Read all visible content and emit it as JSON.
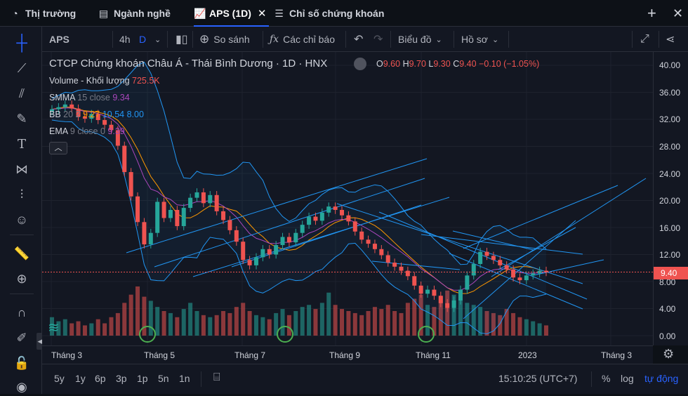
{
  "tabs": [
    {
      "label": "Thị trường",
      "icon": "pie-chart-icon"
    },
    {
      "label": "Ngành nghề",
      "icon": "list-icon"
    },
    {
      "label": "APS (1D)",
      "icon": "chart-icon"
    },
    {
      "label": "Chỉ số chứng khoán",
      "icon": "menu-icon"
    }
  ],
  "toolbar": {
    "symbol": "APS",
    "interval": "4h",
    "interval_active": "D",
    "compare": "So sánh",
    "indicators": "Các chỉ báo",
    "chart_type": "Biểu đồ",
    "profile": "Hồ sơ"
  },
  "legend": {
    "title": "CTCP Chứng khoán Châu Á - Thái Bình Dương · 1D · HNX",
    "o_label": "O",
    "o": "9.60",
    "h_label": "H",
    "h": "9.70",
    "l_label": "L",
    "l": "9.30",
    "c_label": "C",
    "c": "9.40",
    "change": "−0.10 (−1.05%)",
    "volume_label": "Volume - Khối lượng",
    "volume": "725.5K",
    "smma_label": "SMMA",
    "smma_params": "15 close",
    "smma": "9.34",
    "bb_label": "BB",
    "bb_params": "20 2",
    "bb1": "9.27",
    "bb2": "10.54",
    "bb3": "8.00",
    "ema_label": "EMA",
    "ema_params": "9 close 0",
    "ema": "9.39"
  },
  "price_tag": "9.40",
  "y_ticks": [
    "40.00",
    "36.00",
    "32.00",
    "28.00",
    "24.00",
    "20.00",
    "16.00",
    "12.00",
    "8.00",
    "4.00",
    "0.00"
  ],
  "x_ticks": [
    "Tháng 3",
    "Tháng 5",
    "Tháng 7",
    "Tháng 9",
    "Tháng 11",
    "2023",
    "Tháng 3"
  ],
  "ranges": [
    "5y",
    "1y",
    "6p",
    "3p",
    "1p",
    "5n",
    "1n"
  ],
  "time": "15:10:25 (UTC+7)",
  "scale_opts": {
    "percent": "%",
    "log": "log",
    "auto": "tự động"
  },
  "colors": {
    "up": "#26a69a",
    "down": "#ef5350",
    "bb": "#2196f3",
    "ema": "#ab47bc",
    "smma": "#ff9800",
    "accent": "#2962ff"
  },
  "chart_data": {
    "type": "candlestick",
    "title": "CTCP Chứng khoán Châu Á - Thái Bình Dương",
    "ylim": [
      0,
      40
    ],
    "y_ticks": [
      0,
      4,
      8,
      12,
      16,
      20,
      24,
      28,
      32,
      36,
      40
    ],
    "close": [
      33.5,
      33.8,
      34.2,
      33.6,
      32.4,
      32.1,
      32.8,
      31.9,
      31.2,
      30.4,
      28.1,
      24.2,
      20.6,
      16.8,
      13.5,
      15.2,
      19.8,
      17.4,
      18.6,
      16.2,
      18.9,
      20.4,
      21.2,
      19.6,
      20.8,
      18.4,
      17.1,
      15.6,
      13.9,
      11.2,
      10.4,
      11.6,
      12.8,
      12.0,
      13.4,
      14.6,
      13.8,
      15.2,
      16.4,
      17.6,
      17.0,
      18.2,
      19.1,
      18.6,
      17.8,
      16.9,
      15.4,
      14.2,
      13.6,
      12.8,
      11.9,
      10.8,
      10.2,
      9.6,
      8.8,
      7.4,
      6.2,
      6.8,
      5.9,
      4.8,
      4.1,
      5.2,
      6.8,
      8.9,
      10.6,
      12.4,
      11.8,
      11.2,
      10.4,
      9.8,
      8.6,
      8.2,
      8.9,
      9.2,
      9.6,
      9.4
    ],
    "volume": [
      0.9,
      0.7,
      0.8,
      0.6,
      0.7,
      0.5,
      0.6,
      0.8,
      0.6,
      0.9,
      1.1,
      1.6,
      2.0,
      2.4,
      1.9,
      1.7,
      1.4,
      1.2,
      1.1,
      0.9,
      1.3,
      1.6,
      1.2,
      1.0,
      0.9,
      1.0,
      1.2,
      1.1,
      1.4,
      1.6,
      1.2,
      1.0,
      0.9,
      0.8,
      1.1,
      1.3,
      1.0,
      1.2,
      1.4,
      1.5,
      1.3,
      1.6,
      2.1,
      1.5,
      1.3,
      1.2,
      1.1,
      1.0,
      1.2,
      1.4,
      1.3,
      1.5,
      1.2,
      1.1,
      1.6,
      1.8,
      2.0,
      1.5,
      1.4,
      1.9,
      2.2,
      2.0,
      1.8,
      1.6,
      1.5,
      1.4,
      1.2,
      1.1,
      1.0,
      1.3,
      1.1,
      0.9,
      0.8,
      0.7,
      0.6,
      0.5
    ],
    "volume_label": "Volume - Khối lượng",
    "series": [
      {
        "name": "SMMA"
      },
      {
        "name": "BB"
      },
      {
        "name": "EMA"
      }
    ]
  }
}
